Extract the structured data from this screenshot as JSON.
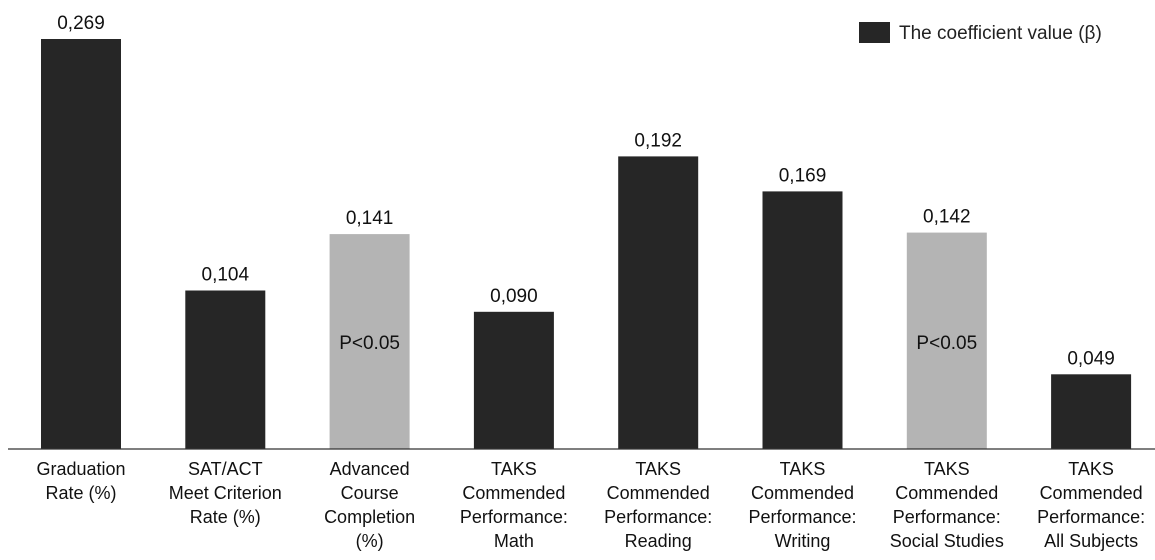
{
  "chart_data": {
    "type": "bar",
    "title": "",
    "xlabel": "",
    "ylabel": "",
    "ylim": [
      0,
      0.269
    ],
    "grid": false,
    "legend_position": "top-right",
    "legend": [
      {
        "label": "The coefficient value (β)",
        "color": "#262626"
      }
    ],
    "categories": [
      [
        "Graduation",
        "Rate (%)"
      ],
      [
        "SAT/ACT",
        "Meet Criterion",
        "Rate (%)"
      ],
      [
        "Advanced",
        "Course",
        "Completion",
        "(%)"
      ],
      [
        "TAKS",
        "Commended",
        "Performance:",
        "Math"
      ],
      [
        "TAKS",
        "Commended",
        "Performance:",
        "Reading"
      ],
      [
        "TAKS",
        "Commended",
        "Performance:",
        "Writing"
      ],
      [
        "TAKS",
        "Commended",
        "Performance:",
        "Social Studies"
      ],
      [
        "TAKS",
        "Commended",
        "Performance:",
        "All Subjects"
      ]
    ],
    "values": [
      0.269,
      0.104,
      0.141,
      0.09,
      0.192,
      0.169,
      0.142,
      0.049
    ],
    "value_labels": [
      "0,269",
      "0,104",
      "0,141",
      "0,090",
      "0,192",
      "0,169",
      "0,142",
      "0,049"
    ],
    "bar_colors": [
      "#262626",
      "#262626",
      "#b4b4b4",
      "#262626",
      "#262626",
      "#262626",
      "#b4b4b4",
      "#262626"
    ],
    "annotations": [
      "",
      "",
      "P<0.05",
      "",
      "",
      "",
      "P<0.05",
      ""
    ]
  }
}
